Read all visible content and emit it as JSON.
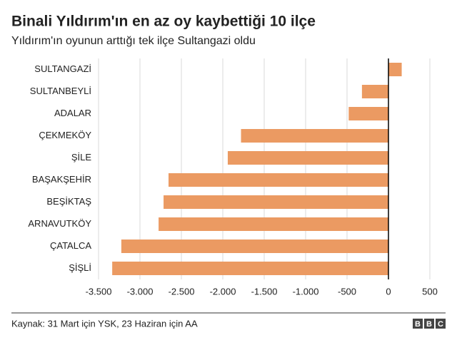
{
  "chart_data": {
    "type": "barh",
    "title": "Binali Yıldırım'ın en az oy kaybettiği 10 ilçe",
    "subtitle": "Yıldırım'ın oyunun arttığı tek ilçe Sultangazi oldu",
    "categories": [
      "SULTANGAZİ",
      "SULTANBEYLİ",
      "ADALAR",
      "ÇEKMEKÖY",
      "ŞİLE",
      "BAŞAKŞEHİR",
      "BEŞİKTAŞ",
      "ARNAVUTKÖY",
      "ÇATALCA",
      "ŞİŞLİ"
    ],
    "values": [
      160,
      -320,
      -480,
      -1780,
      -1940,
      -2655,
      -2715,
      -2775,
      -3225,
      -3335
    ],
    "color": "#eb9a62",
    "xlim": [
      -3500,
      500
    ],
    "xticks": [
      {
        "value": -3500,
        "label": "-3.500"
      },
      {
        "value": -3000,
        "label": "-3.000"
      },
      {
        "value": -2500,
        "label": "-2.500"
      },
      {
        "value": -2000,
        "label": "-2.000"
      },
      {
        "value": -1500,
        "label": "-1.500"
      },
      {
        "value": -1000,
        "label": "-1.000"
      },
      {
        "value": -500,
        "label": "-500"
      },
      0,
      500
    ],
    "grid": true,
    "source": "Kaynak: 31 Mart için YSK, 23 Haziran için AA",
    "logo": [
      "B",
      "B",
      "C"
    ]
  }
}
